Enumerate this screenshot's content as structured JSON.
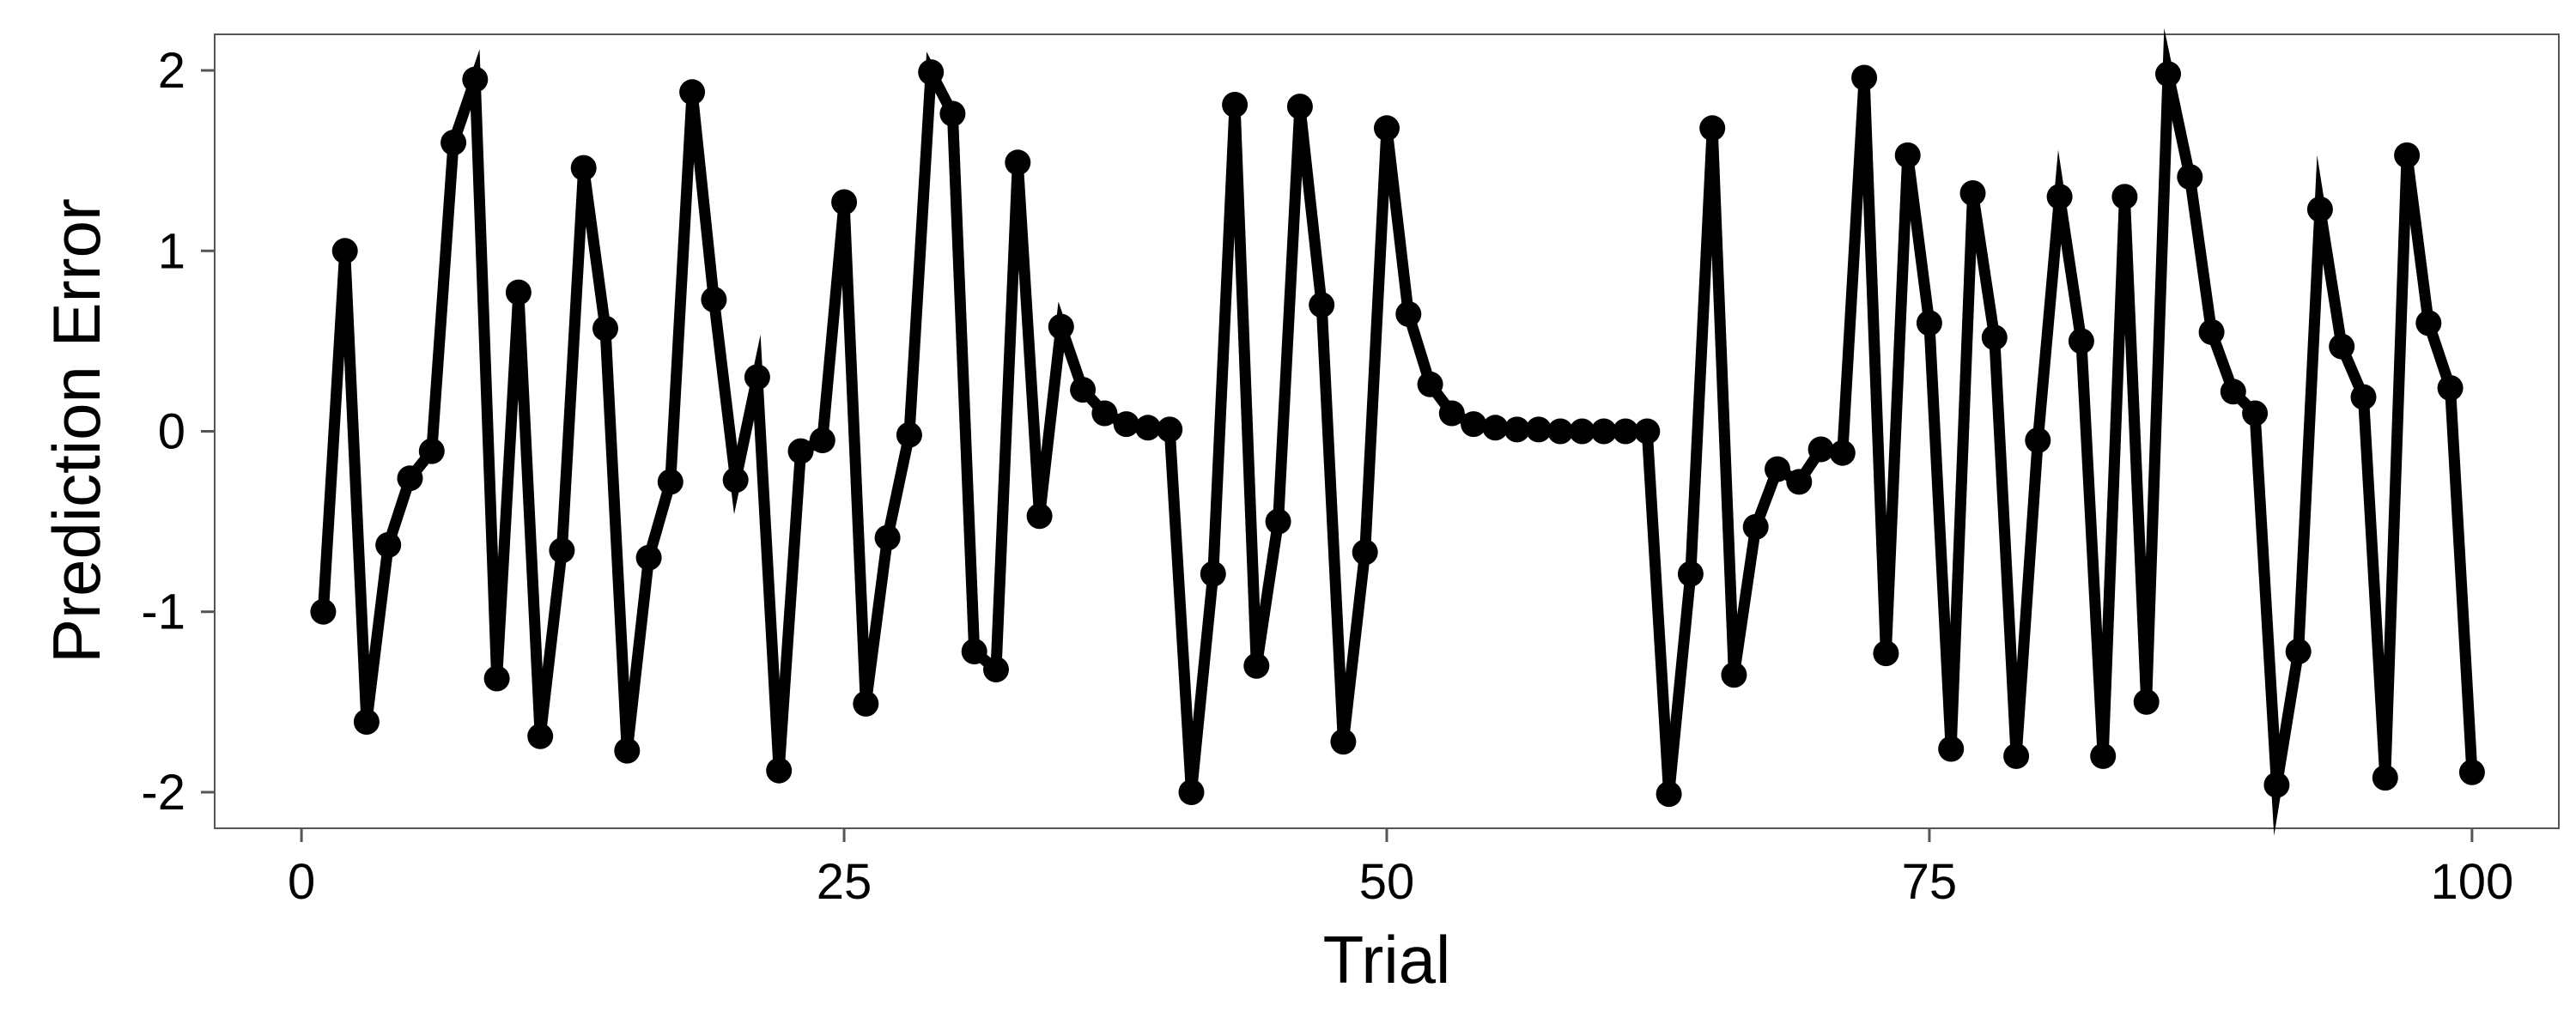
{
  "chart_data": {
    "type": "line",
    "title": "",
    "xlabel": "Trial",
    "ylabel": "Prediction Error",
    "xlim": [
      -4,
      104
    ],
    "ylim": [
      -2.2,
      2.2
    ],
    "x_ticks": [
      0,
      25,
      50,
      75,
      100
    ],
    "x_tick_labels": [
      "0",
      "25",
      "50",
      "75",
      "100"
    ],
    "y_ticks": [
      -2,
      -1,
      0,
      1,
      2
    ],
    "y_tick_labels": [
      "-2",
      "-1",
      "0",
      "1",
      "2"
    ],
    "grid": false,
    "markers": true,
    "colors": {
      "line": "#000000",
      "panel_border": "#555555",
      "background": "#ffffff"
    },
    "series": [
      {
        "x": [
          1,
          2,
          3,
          4,
          5,
          6,
          7,
          8,
          9,
          10,
          11,
          12,
          13,
          14,
          15,
          16,
          17,
          18,
          19,
          20,
          21,
          22,
          23,
          24,
          25,
          26,
          27,
          28,
          29,
          30,
          31,
          32,
          33,
          34,
          35,
          36,
          37,
          38,
          39,
          40,
          41,
          42,
          43,
          44,
          45,
          46,
          47,
          48,
          49,
          50,
          51,
          52,
          53,
          54,
          55,
          56,
          57,
          58,
          59,
          60,
          61,
          62,
          63,
          64,
          65,
          66,
          67,
          68,
          69,
          70,
          71,
          72,
          73,
          74,
          75,
          76,
          77,
          78,
          79,
          80,
          81,
          82,
          83,
          84,
          85,
          86,
          87,
          88,
          89,
          90,
          91,
          92,
          93,
          94,
          95,
          96,
          97,
          98,
          99,
          100
        ],
        "y": [
          -1.0,
          1.0,
          -1.61,
          -0.63,
          -0.26,
          -0.11,
          1.6,
          1.95,
          -1.37,
          0.77,
          -1.69,
          -0.66,
          1.46,
          0.57,
          -1.77,
          -0.7,
          -0.28,
          1.88,
          0.73,
          -0.27,
          0.3,
          -1.88,
          -0.11,
          -0.05,
          1.27,
          -1.51,
          -0.59,
          -0.02,
          1.99,
          1.76,
          -1.22,
          -1.32,
          1.49,
          -0.47,
          0.58,
          0.23,
          0.1,
          0.04,
          0.02,
          0.01,
          -2.0,
          -0.79,
          1.81,
          -1.3,
          -0.5,
          1.8,
          0.7,
          -1.72,
          -0.67,
          1.68,
          0.65,
          0.26,
          0.1,
          0.04,
          0.02,
          0.01,
          0.01,
          0.0,
          0.0,
          0.0,
          0.0,
          0.0,
          -2.01,
          -0.79,
          1.68,
          -1.35,
          -0.53,
          -0.21,
          -0.28,
          -0.1,
          -0.12,
          1.96,
          -1.23,
          1.53,
          0.6,
          -1.76,
          1.32,
          0.52,
          -1.8,
          -0.05,
          1.3,
          0.5,
          -1.8,
          1.3,
          -1.5,
          1.98,
          1.41,
          0.55,
          0.22,
          0.1,
          -1.96,
          -1.22,
          1.23,
          0.47,
          0.19,
          -1.92,
          1.53,
          0.6,
          0.24,
          -1.89
        ]
      }
    ]
  }
}
